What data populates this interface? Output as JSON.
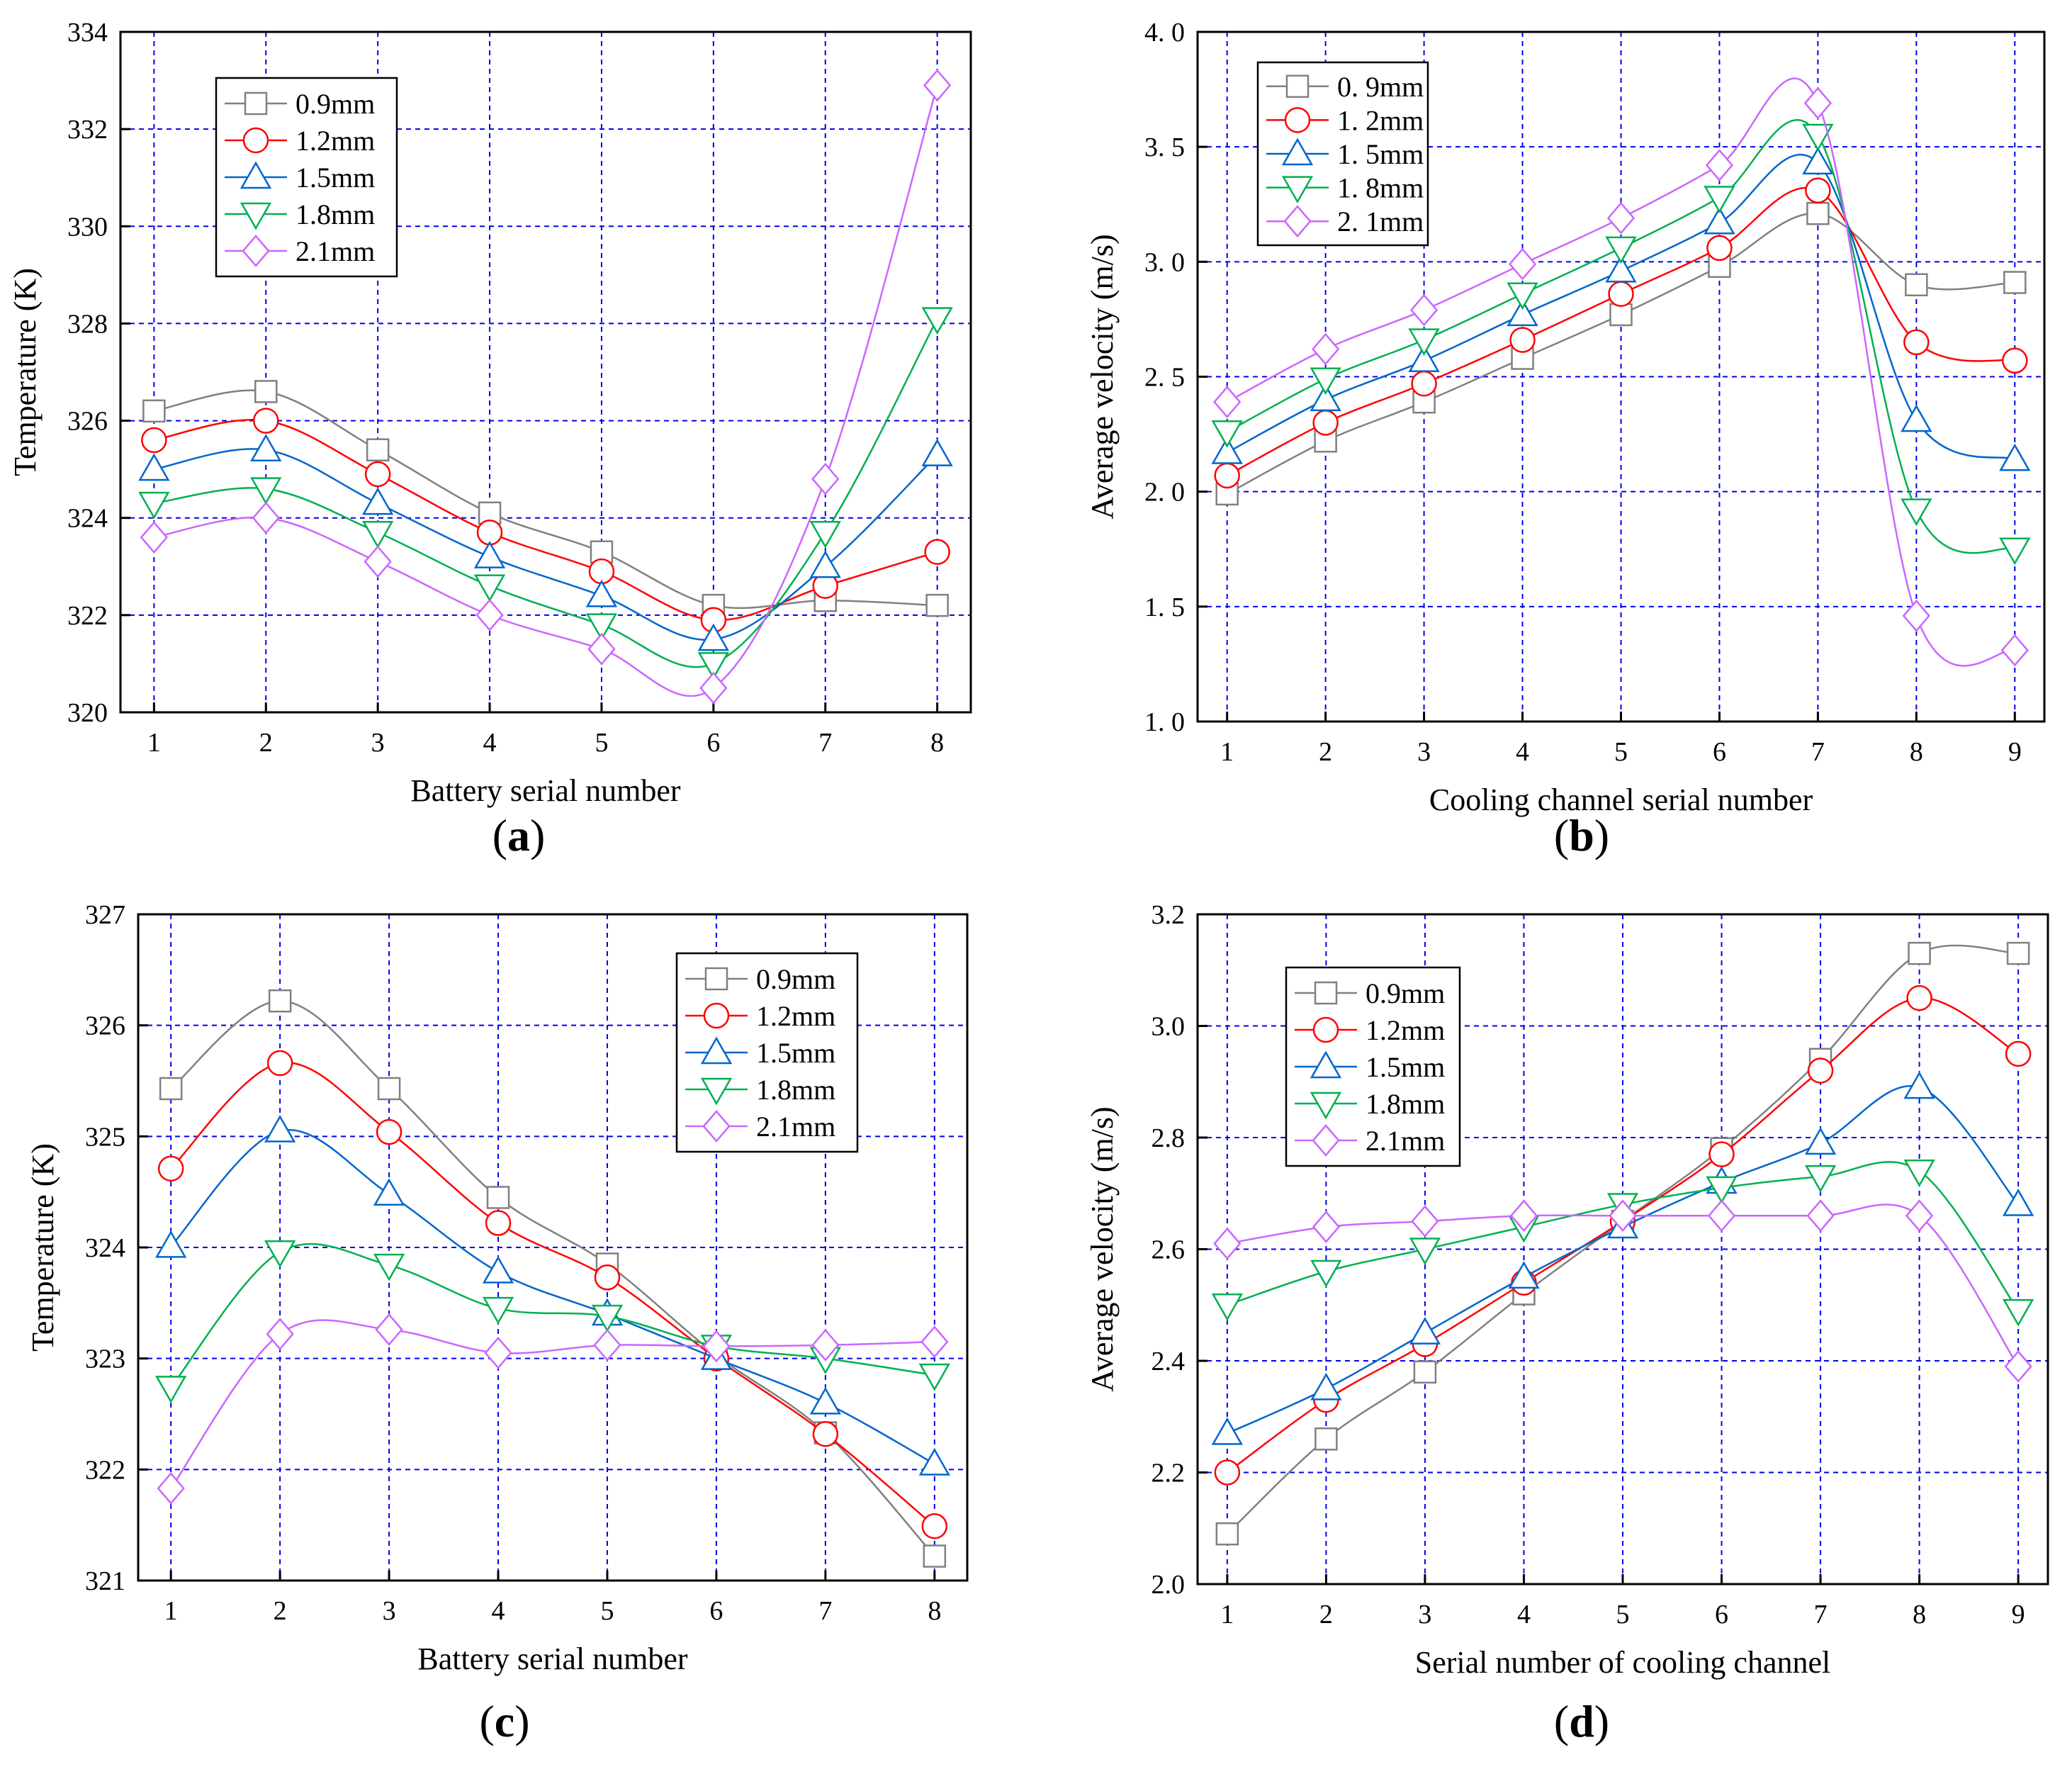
{
  "colors": {
    "0.9mm": "#808080",
    "1.2mm": "#ff0000",
    "1.5mm": "#0066cc",
    "1.8mm": "#00b050",
    "2.1mm": "#cc66ff",
    "grid": "#0000ee"
  },
  "chart_data": [
    {
      "id": "a",
      "panel_label": "a",
      "type": "line",
      "title": "",
      "xlabel": "Battery serial number",
      "ylabel": "Temperature (K)",
      "x": [
        1,
        2,
        3,
        4,
        5,
        6,
        7,
        8
      ],
      "xlim": [
        0.7,
        8.3
      ],
      "ylim": [
        320,
        334
      ],
      "yticks": [
        320,
        322,
        324,
        326,
        328,
        330,
        332,
        334
      ],
      "ytick_labels": [
        "320",
        "322",
        "324",
        "326",
        "328",
        "330",
        "332",
        "334"
      ],
      "xtick_labels": [
        "1",
        "2",
        "3",
        "4",
        "5",
        "6",
        "7",
        "8"
      ],
      "grid": true,
      "legend_position": "top-left",
      "series": [
        {
          "name": "0.9mm",
          "marker": "square",
          "values": [
            326.2,
            326.6,
            325.4,
            324.1,
            323.3,
            322.2,
            322.3,
            322.2
          ]
        },
        {
          "name": "1.2mm",
          "marker": "circle",
          "values": [
            325.6,
            326.0,
            324.9,
            323.7,
            322.9,
            321.9,
            322.6,
            323.3
          ]
        },
        {
          "name": "1.5mm",
          "marker": "triangle-up",
          "values": [
            325.0,
            325.4,
            324.3,
            323.2,
            322.4,
            321.5,
            323.0,
            325.3
          ]
        },
        {
          "name": "1.8mm",
          "marker": "triangle-down",
          "values": [
            324.3,
            324.6,
            323.7,
            322.6,
            321.8,
            321.0,
            323.7,
            328.1
          ]
        },
        {
          "name": "2.1mm",
          "marker": "diamond",
          "values": [
            323.6,
            324.0,
            323.1,
            322.0,
            321.3,
            320.5,
            324.8,
            332.9
          ]
        }
      ]
    },
    {
      "id": "b",
      "panel_label": "b",
      "type": "line",
      "title": "",
      "xlabel": "Cooling channel serial number",
      "ylabel": "Average velocity (m/s)",
      "x": [
        1,
        2,
        3,
        4,
        5,
        6,
        7,
        8,
        9
      ],
      "xlim": [
        0.7,
        9.3
      ],
      "ylim": [
        1.0,
        4.0
      ],
      "yticks": [
        1.0,
        1.5,
        2.0,
        2.5,
        3.0,
        3.5,
        4.0
      ],
      "ytick_labels": [
        "1. 0",
        "1. 5",
        "2. 0",
        "2. 5",
        "3. 0",
        "3. 5",
        "4. 0"
      ],
      "xtick_labels": [
        "1",
        "2",
        "3",
        "4",
        "5",
        "6",
        "7",
        "8",
        "9"
      ],
      "grid": true,
      "legend_position": "top-left",
      "legend_labels": [
        "0. 9mm",
        "1. 2mm",
        "1. 5mm",
        "1. 8mm",
        "2. 1mm"
      ],
      "series": [
        {
          "name": "0.9mm",
          "marker": "square",
          "values": [
            1.99,
            2.22,
            2.39,
            2.58,
            2.77,
            2.98,
            3.21,
            2.9,
            2.91
          ]
        },
        {
          "name": "1.2mm",
          "marker": "circle",
          "values": [
            2.07,
            2.3,
            2.47,
            2.66,
            2.86,
            3.06,
            3.31,
            2.65,
            2.57
          ]
        },
        {
          "name": "1.5mm",
          "marker": "triangle-up",
          "values": [
            2.17,
            2.4,
            2.57,
            2.77,
            2.96,
            3.17,
            3.43,
            2.31,
            2.14
          ]
        },
        {
          "name": "1.8mm",
          "marker": "triangle-down",
          "values": [
            2.26,
            2.49,
            2.66,
            2.86,
            3.06,
            3.28,
            3.55,
            1.92,
            1.75
          ]
        },
        {
          "name": "2.1mm",
          "marker": "diamond",
          "values": [
            2.39,
            2.62,
            2.79,
            2.99,
            3.19,
            3.42,
            3.69,
            1.46,
            1.31
          ]
        }
      ]
    },
    {
      "id": "c",
      "panel_label": "c",
      "type": "line",
      "title": "",
      "xlabel": "Battery serial number",
      "ylabel": "Temperature (K)",
      "x": [
        1,
        2,
        3,
        4,
        5,
        6,
        7,
        8
      ],
      "xlim": [
        0.7,
        8.3
      ],
      "ylim": [
        321,
        327
      ],
      "yticks": [
        321,
        322,
        323,
        324,
        325,
        326,
        327
      ],
      "ytick_labels": [
        "321",
        "322",
        "323",
        "324",
        "325",
        "326",
        "327"
      ],
      "xtick_labels": [
        "1",
        "2",
        "3",
        "4",
        "5",
        "6",
        "7",
        "8"
      ],
      "grid": true,
      "legend_position": "top-right",
      "series": [
        {
          "name": "0.9mm",
          "marker": "square",
          "values": [
            325.43,
            326.22,
            325.43,
            324.45,
            323.85,
            323.03,
            322.33,
            321.22
          ]
        },
        {
          "name": "1.2mm",
          "marker": "circle",
          "values": [
            324.71,
            325.66,
            325.04,
            324.22,
            323.73,
            323.0,
            322.32,
            321.49
          ]
        },
        {
          "name": "1.5mm",
          "marker": "triangle-up",
          "values": [
            324.01,
            325.05,
            324.48,
            323.78,
            323.4,
            323.0,
            322.6,
            322.05
          ]
        },
        {
          "name": "1.8mm",
          "marker": "triangle-down",
          "values": [
            322.74,
            323.96,
            323.84,
            323.45,
            323.38,
            323.11,
            323.0,
            322.85
          ]
        },
        {
          "name": "2.1mm",
          "marker": "diamond",
          "values": [
            321.83,
            323.22,
            323.26,
            323.05,
            323.12,
            323.11,
            323.12,
            323.15
          ]
        }
      ]
    },
    {
      "id": "d",
      "panel_label": "d",
      "type": "line",
      "title": "",
      "xlabel": "Serial number of cooling channel",
      "ylabel": "Average velocity (m/s)",
      "x": [
        1,
        2,
        3,
        4,
        5,
        6,
        7,
        8,
        9
      ],
      "xlim": [
        0.7,
        9.3
      ],
      "ylim": [
        2.0,
        3.2
      ],
      "yticks": [
        2.0,
        2.2,
        2.4,
        2.6,
        2.8,
        3.0,
        3.2
      ],
      "ytick_labels": [
        "2.0",
        "2.2",
        "2.4",
        "2.6",
        "2.8",
        "3.0",
        "3.2"
      ],
      "xtick_labels": [
        "1",
        "2",
        "3",
        "4",
        "5",
        "6",
        "7",
        "8",
        "9"
      ],
      "grid": true,
      "legend_position": "top-left",
      "series": [
        {
          "name": "0.9mm",
          "marker": "square",
          "values": [
            2.09,
            2.26,
            2.38,
            2.52,
            2.65,
            2.78,
            2.94,
            3.13,
            3.13
          ]
        },
        {
          "name": "1.2mm",
          "marker": "circle",
          "values": [
            2.2,
            2.33,
            2.43,
            2.54,
            2.65,
            2.77,
            2.92,
            3.05,
            2.95
          ]
        },
        {
          "name": "1.5mm",
          "marker": "triangle-up",
          "values": [
            2.27,
            2.35,
            2.45,
            2.55,
            2.64,
            2.72,
            2.79,
            2.89,
            2.68
          ]
        },
        {
          "name": "1.8mm",
          "marker": "triangle-down",
          "values": [
            2.5,
            2.56,
            2.6,
            2.64,
            2.68,
            2.71,
            2.73,
            2.74,
            2.49
          ]
        },
        {
          "name": "2.1mm",
          "marker": "diamond",
          "values": [
            2.61,
            2.64,
            2.65,
            2.66,
            2.66,
            2.66,
            2.66,
            2.66,
            2.39
          ]
        }
      ]
    }
  ]
}
